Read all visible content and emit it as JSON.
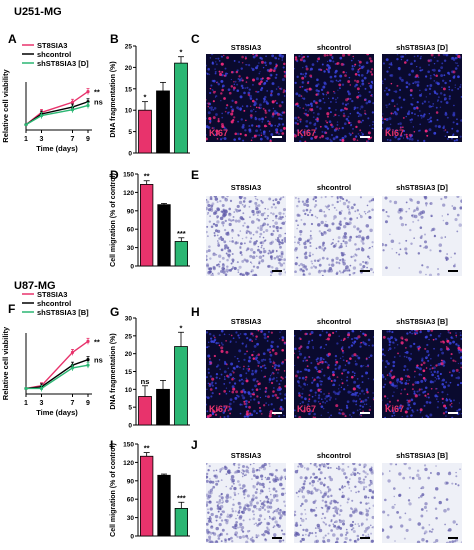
{
  "colors": {
    "st8sia3": "#e8336c",
    "shcontrol": "#000000",
    "shst8sia3": "#2bb673"
  },
  "u251": {
    "cell_line_label": "U251-MG",
    "letters": {
      "A": "A",
      "B": "B",
      "C": "C",
      "D": "D",
      "E": "E"
    },
    "micro_fluor": {
      "titles": [
        "ST8SIA3",
        "shcontrol",
        "shST8SIA3 [D]"
      ],
      "stain_label": "Ki67"
    },
    "micro_migration": {
      "titles": [
        "ST8SIA3",
        "shcontrol",
        "shST8SIA3 [D]"
      ]
    }
  },
  "u87": {
    "cell_line_label": "U87-MG",
    "letters": {
      "F": "F",
      "G": "G",
      "H": "H",
      "I": "I",
      "J": "J"
    },
    "micro_fluor": {
      "titles": [
        "ST8SIA3",
        "shcontrol",
        "shST8SIA3 [B]"
      ],
      "stain_label": "Ki67"
    },
    "micro_migration": {
      "titles": [
        "ST8SIA3",
        "shcontrol",
        "shST8SIA3 [B]"
      ]
    }
  },
  "chart_data": [
    {
      "id": "A",
      "type": "line",
      "xlabel": "Time (days)",
      "ylabel": "Relative cell viability",
      "x": [
        1,
        3,
        7,
        9
      ],
      "series": [
        {
          "name": "ST8SIA3",
          "color": "#e8336c",
          "values": [
            1,
            3.3,
            5.2,
            7.2
          ],
          "annotation": "**"
        },
        {
          "name": "shcontrol",
          "color": "#000000",
          "values": [
            1,
            3.0,
            4.3,
            5.3
          ],
          "annotation": "ns"
        },
        {
          "name": "shST8SIA3 [D]",
          "color": "#2bb673",
          "values": [
            1,
            2.7,
            3.8,
            4.6
          ],
          "annotation": ""
        }
      ],
      "xticks": [
        1,
        3,
        7,
        9
      ],
      "ylim": [
        0,
        9
      ],
      "yticks": [],
      "legend": "top-left"
    },
    {
      "id": "B",
      "type": "bar",
      "ylabel": "DNA fragmentation (%)",
      "categories": [
        "ST8SIA3",
        "shcontrol",
        "shST8SIA3 [D]"
      ],
      "values": [
        10,
        14.5,
        21
      ],
      "errors": [
        2.0,
        2.0,
        1.5
      ],
      "colors": [
        "#e8336c",
        "#000000",
        "#2bb673"
      ],
      "annotations": [
        "*",
        "",
        "*"
      ],
      "ylim": [
        0,
        25
      ],
      "yticks": [
        0,
        5,
        10,
        15,
        20,
        25
      ]
    },
    {
      "id": "D",
      "type": "bar",
      "ylabel": "Cell migration (% of control)",
      "categories": [
        "ST8SIA3",
        "shcontrol",
        "shST8SIA3 [D]"
      ],
      "values": [
        133,
        100,
        40
      ],
      "errors": [
        6,
        2,
        6
      ],
      "colors": [
        "#e8336c",
        "#000000",
        "#2bb673"
      ],
      "annotations": [
        "**",
        "",
        "***"
      ],
      "ylim": [
        0,
        150
      ],
      "yticks": [
        0,
        30,
        60,
        90,
        120,
        150
      ]
    },
    {
      "id": "F",
      "type": "line",
      "xlabel": "Time (days)",
      "ylabel": "Relative cell viability",
      "x": [
        1,
        3,
        7,
        9
      ],
      "series": [
        {
          "name": "ST8SIA3",
          "color": "#e8336c",
          "values": [
            1,
            1.5,
            7.5,
            9.5
          ],
          "annotation": "**"
        },
        {
          "name": "shcontrol",
          "color": "#000000",
          "values": [
            1,
            1.3,
            5.2,
            6.2
          ],
          "annotation": "ns"
        },
        {
          "name": "shST8SIA3 [B]",
          "color": "#2bb673",
          "values": [
            1,
            1.0,
            4.7,
            5.2
          ],
          "annotation": ""
        }
      ],
      "xticks": [
        1,
        3,
        7,
        9
      ],
      "ylim": [
        0,
        11
      ],
      "yticks": [],
      "legend": "top-left"
    },
    {
      "id": "G",
      "type": "bar",
      "ylabel": "DNA fragmentation (%)",
      "categories": [
        "ST8SIA3",
        "shcontrol",
        "shST8SIA3 [B]"
      ],
      "values": [
        8,
        10,
        22
      ],
      "errors": [
        3,
        2.5,
        4
      ],
      "colors": [
        "#e8336c",
        "#000000",
        "#2bb673"
      ],
      "annotations": [
        "ns",
        "",
        "*"
      ],
      "ylim": [
        0,
        30
      ],
      "yticks": [
        0,
        5,
        10,
        15,
        20,
        25,
        30
      ]
    },
    {
      "id": "I",
      "type": "bar",
      "ylabel": "Cell migration (% of control)",
      "categories": [
        "ST8SIA3",
        "shcontrol",
        "shST8SIA3 [B]"
      ],
      "values": [
        130,
        99,
        45
      ],
      "errors": [
        6,
        2,
        10
      ],
      "colors": [
        "#e8336c",
        "#000000",
        "#2bb673"
      ],
      "annotations": [
        "**",
        "",
        "***"
      ],
      "ylim": [
        0,
        150
      ],
      "yticks": [
        0,
        30,
        60,
        90,
        120,
        150
      ]
    }
  ]
}
